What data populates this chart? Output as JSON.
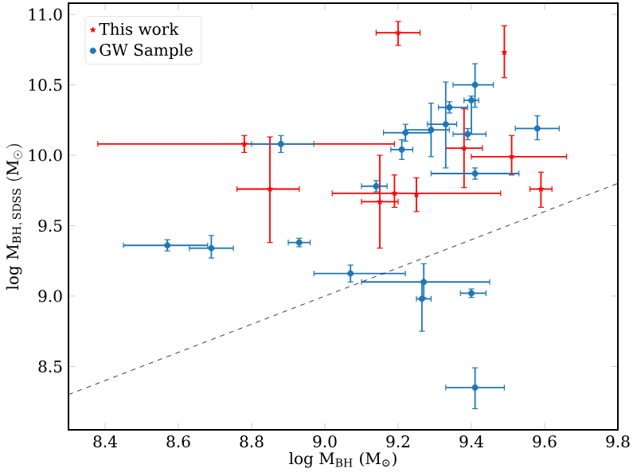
{
  "chart_data": {
    "type": "scatter",
    "xlabel": "log M$_{BH}$ (M$_{⊙}$)",
    "ylabel": "\\log\\,\\mathrm{M}_{\\mathrm{BH,\\,SDSS}}\\ (\\mathrm{M}_{\\odot})",
    "xlim": [
      8.3,
      9.8
    ],
    "ylim": [
      8.05,
      11.08
    ],
    "xticks": [
      8.4,
      8.6,
      8.8,
      {
        "value": 9.0,
        "label": "9.0"
      },
      9.2,
      9.4,
      9.6,
      9.8
    ],
    "yticks": [
      8.5,
      {
        "value": 9.0,
        "label": "9.0"
      },
      9.5,
      {
        "value": 10.0,
        "label": "10.0"
      },
      10.5,
      {
        "value": 11.0,
        "label": "11.0"
      }
    ],
    "legend": "top left",
    "grid": false,
    "series": [
      {
        "name": "This work",
        "color": "#ff0000",
        "marker": "star",
        "x": [
          8.78,
          8.85,
          9.2,
          9.49,
          9.38,
          9.51,
          9.19,
          9.25,
          9.15,
          9.59
        ],
        "values": [
          10.08,
          9.76,
          10.87,
          10.73,
          10.05,
          9.99,
          9.73,
          9.72,
          9.67,
          9.76
        ],
        "xerrors": [
          [
            8.38,
            9.19
          ],
          [
            8.76,
            8.93
          ],
          [
            9.14,
            9.26
          ],
          null,
          [
            9.33,
            9.43
          ],
          [
            9.4,
            9.66
          ],
          [
            9.02,
            9.48
          ],
          null,
          [
            9.1,
            9.2
          ],
          [
            9.56,
            9.62
          ]
        ],
        "errors": [
          [
            10.02,
            10.14
          ],
          [
            9.38,
            10.13
          ],
          [
            10.78,
            10.95
          ],
          [
            10.55,
            10.92
          ],
          [
            9.77,
            10.33
          ],
          [
            9.86,
            10.14
          ],
          [
            9.63,
            9.86
          ],
          [
            9.6,
            9.84
          ],
          [
            9.34,
            10.0
          ],
          [
            9.63,
            9.88
          ]
        ]
      },
      {
        "name": "GW Sample",
        "color": "#1f77b4",
        "marker": "circle",
        "x": [
          8.88,
          9.41,
          9.4,
          9.34,
          9.33,
          9.29,
          9.22,
          9.39,
          9.58,
          9.21,
          9.41,
          9.14,
          8.57,
          8.69,
          8.93,
          9.07,
          9.27,
          9.265,
          9.4,
          9.41
        ],
        "values": [
          10.08,
          10.5,
          10.39,
          10.34,
          10.22,
          10.18,
          10.16,
          10.15,
          10.19,
          10.04,
          9.87,
          9.78,
          9.36,
          9.34,
          9.38,
          9.16,
          9.1,
          8.98,
          9.02,
          8.35
        ],
        "xerrors": [
          [
            8.8,
            8.97
          ],
          [
            9.35,
            9.46
          ],
          [
            9.38,
            9.42
          ],
          [
            9.31,
            9.39
          ],
          [
            9.28,
            9.36
          ],
          [
            9.22,
            9.34
          ],
          [
            9.16,
            9.29
          ],
          [
            9.35,
            9.44
          ],
          [
            9.52,
            9.64
          ],
          [
            9.18,
            9.24
          ],
          [
            9.29,
            9.53
          ],
          [
            9.1,
            9.17
          ],
          [
            8.45,
            8.68
          ],
          [
            8.63,
            8.75
          ],
          [
            8.9,
            8.96
          ],
          [
            8.97,
            9.22
          ],
          [
            9.1,
            9.45
          ],
          [
            9.25,
            9.29
          ],
          [
            9.37,
            9.44
          ],
          [
            9.33,
            9.49
          ]
        ],
        "errors": [
          [
            10.02,
            10.14
          ],
          [
            10.34,
            10.65
          ],
          [
            10.15,
            10.42
          ],
          [
            10.3,
            10.38
          ],
          [
            9.91,
            10.52
          ],
          [
            9.99,
            10.37
          ],
          [
            10.1,
            10.22
          ],
          [
            10.11,
            10.19
          ],
          [
            10.11,
            10.28
          ],
          [
            9.97,
            10.11
          ],
          [
            9.83,
            9.91
          ],
          [
            9.74,
            9.82
          ],
          [
            9.32,
            9.4
          ],
          [
            9.27,
            9.43
          ],
          [
            9.35,
            9.41
          ],
          [
            9.1,
            9.22
          ],
          [
            8.99,
            9.23
          ],
          [
            8.75,
            9.1
          ],
          [
            8.99,
            9.05
          ],
          [
            8.2,
            8.49
          ]
        ]
      },
      {
        "type": "line",
        "color": "#000000",
        "line_style": "dashed",
        "marker": "none",
        "x": [
          8.3,
          9.8
        ],
        "values": [
          8.3,
          9.8
        ]
      }
    ]
  }
}
